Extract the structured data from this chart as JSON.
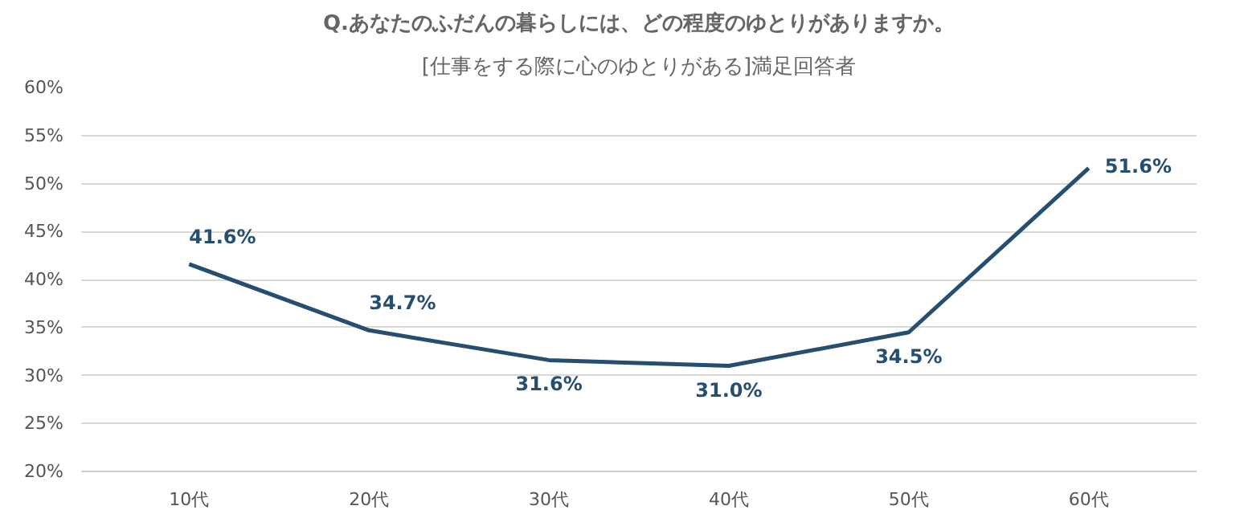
{
  "chart_data": {
    "type": "line",
    "title": "Q.あなたのふだんの暮らしには、どの程度のゆとりがありますか。",
    "subtitle": "[仕事をする際に心のゆとりがある]満足回答者",
    "categories": [
      "10代",
      "20代",
      "30代",
      "40代",
      "50代",
      "60代"
    ],
    "series": [
      {
        "color": "#264e70",
        "values": [
          41.6,
          34.7,
          31.6,
          31.0,
          34.5,
          51.6
        ],
        "value_labels": [
          "41.6%",
          "34.7%",
          "31.6%",
          "31.0%",
          "34.5%",
          "51.6%"
        ]
      }
    ],
    "ylim": [
      20,
      60
    ],
    "yticks": [
      {
        "value": 20,
        "label": "20%"
      },
      {
        "value": 25,
        "label": "25%"
      },
      {
        "value": 30,
        "label": "30%"
      },
      {
        "value": 35,
        "label": "35%"
      },
      {
        "value": 40,
        "label": "40%"
      },
      {
        "value": 45,
        "label": "45%"
      },
      {
        "value": 50,
        "label": "50%"
      },
      {
        "value": 55,
        "label": "55%"
      },
      {
        "value": 60,
        "label": "60%"
      }
    ],
    "grid": "y",
    "marker": "none",
    "line_style": "solid"
  }
}
